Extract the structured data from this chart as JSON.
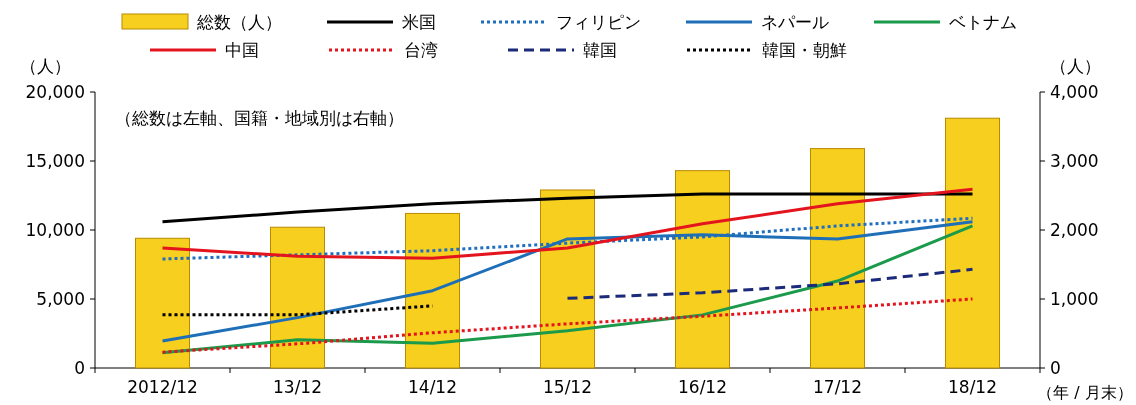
{
  "chart_data": {
    "type": "bar",
    "categories": [
      "2012/12",
      "13/12",
      "14/12",
      "15/12",
      "16/12",
      "17/12",
      "18/12"
    ],
    "series": [
      {
        "name": "総数（人）",
        "color": "#f7cf1e",
        "values": [
          9400,
          10200,
          11200,
          12900,
          14300,
          15900,
          18100
        ]
      },
      {
        "name": "米国",
        "type": "line",
        "axis": "y2",
        "color": "#000000",
        "line_style": "solid",
        "values": [
          2120,
          2260,
          2380,
          2460,
          2520,
          2520,
          2520
        ]
      },
      {
        "name": "フィリピン",
        "type": "line",
        "axis": "y2",
        "color": "#1f6fc0",
        "line_style": "dotted",
        "values": [
          1580,
          1640,
          1700,
          1810,
          1900,
          2060,
          2170
        ]
      },
      {
        "name": "ネパール",
        "type": "line",
        "axis": "y2",
        "color": "#1f6fb8",
        "line_style": "solid",
        "values": [
          390,
          730,
          1120,
          1870,
          1930,
          1870,
          2120
        ]
      },
      {
        "name": "ベトナム",
        "type": "line",
        "axis": "y2",
        "color": "#1a9a4a",
        "line_style": "solid",
        "values": [
          220,
          410,
          360,
          540,
          770,
          1260,
          2060
        ]
      },
      {
        "name": "中国",
        "type": "line",
        "axis": "y2",
        "color": "#e3141e",
        "line_style": "solid",
        "values": [
          1740,
          1620,
          1590,
          1740,
          2090,
          2380,
          2590
        ]
      },
      {
        "name": "台湾",
        "type": "line",
        "axis": "y2",
        "color": "#e3141e",
        "line_style": "dotted",
        "values": [
          230,
          350,
          510,
          640,
          750,
          870,
          1000
        ]
      },
      {
        "name": "韓国",
        "type": "line",
        "axis": "y2",
        "color": "#1c2a7a",
        "line_style": "dashed",
        "values": [
          null,
          null,
          null,
          1010,
          1090,
          1220,
          1430
        ]
      },
      {
        "name": "韓国・朝鮮",
        "type": "line",
        "axis": "y2",
        "color": "#000000",
        "line_style": "dotted",
        "values": [
          770,
          770,
          900,
          null,
          null,
          null,
          null
        ]
      }
    ],
    "ylim": [
      0,
      20000
    ],
    "yticks": [
      0,
      {
        "value": 5000,
        "label": "5,000"
      },
      {
        "value": 10000,
        "label": "10,000"
      },
      {
        "value": 15000,
        "label": "15,000"
      },
      {
        "value": 20000,
        "label": "20,000"
      }
    ],
    "y2lim": [
      0,
      4000
    ],
    "y2ticks": [
      0,
      {
        "value": 1000,
        "label": "1,000"
      },
      {
        "value": 2000,
        "label": "2,000"
      },
      {
        "value": 3000,
        "label": "3,000"
      },
      {
        "value": 4000,
        "label": "4,000"
      }
    ],
    "ylabel": "（人）",
    "y2label": "（人）",
    "xlabel": "（年 / 月末）",
    "annotations": [
      "（総数は左軸、国籍・地域別は右軸）"
    ],
    "legend": "top",
    "grid": false
  }
}
